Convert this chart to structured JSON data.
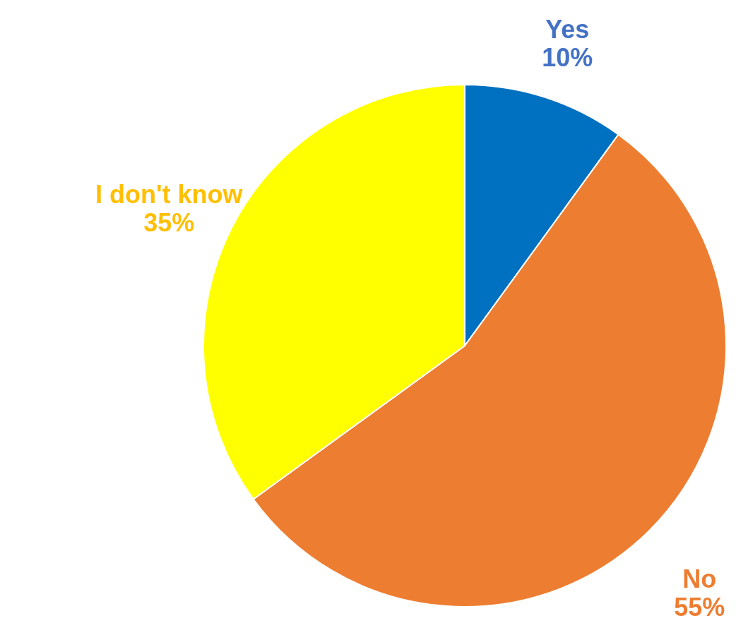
{
  "chart_data": {
    "type": "pie",
    "categories": [
      "Yes",
      "No",
      "I don't know"
    ],
    "values": [
      10,
      55,
      35
    ],
    "colors": [
      "#0070c0",
      "#ed7d31",
      "#ffff00"
    ],
    "value_labels": [
      "10%",
      "55%",
      "35%"
    ]
  }
}
